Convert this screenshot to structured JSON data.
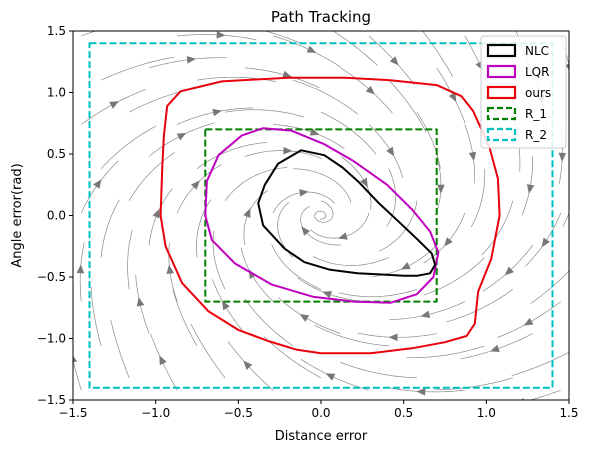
{
  "chart_data": {
    "type": "line",
    "title": "Path Tracking",
    "xlabel": "Distance error",
    "ylabel": "Angle error(rad)",
    "xlim": [
      -1.5,
      1.5
    ],
    "ylim": [
      -1.5,
      1.5
    ],
    "xticks": [
      "−1.5",
      "−1.0",
      "−0.5",
      "0.0",
      "0.5",
      "1.0",
      "1.5"
    ],
    "yticks": [
      "−1.5",
      "−1.0",
      "−0.5",
      "0.0",
      "0.5",
      "1.0",
      "1.5"
    ],
    "xtick_values": [
      -1.5,
      -1.0,
      -0.5,
      0.0,
      0.5,
      1.0,
      1.5
    ],
    "ytick_values": [
      -1.5,
      -1.0,
      -0.5,
      0.0,
      0.5,
      1.0,
      1.5
    ],
    "legend_placement": "top-right",
    "background": "streamplot vector field",
    "series": [
      {
        "name": "NLC",
        "color": "#000000",
        "style": "solid",
        "closed": true,
        "points": [
          [
            -0.12,
            0.53
          ],
          [
            0.02,
            0.49
          ],
          [
            0.13,
            0.39
          ],
          [
            0.23,
            0.27
          ],
          [
            0.35,
            0.1
          ],
          [
            0.47,
            -0.05
          ],
          [
            0.58,
            -0.19
          ],
          [
            0.67,
            -0.31
          ],
          [
            0.69,
            -0.4
          ],
          [
            0.66,
            -0.47
          ],
          [
            0.58,
            -0.49
          ],
          [
            0.5,
            -0.49
          ],
          [
            0.37,
            -0.48
          ],
          [
            0.22,
            -0.47
          ],
          [
            0.05,
            -0.44
          ],
          [
            -0.1,
            -0.38
          ],
          [
            -0.22,
            -0.27
          ],
          [
            -0.35,
            -0.08
          ],
          [
            -0.38,
            0.1
          ],
          [
            -0.34,
            0.25
          ],
          [
            -0.26,
            0.42
          ],
          [
            -0.12,
            0.53
          ]
        ]
      },
      {
        "name": "LQR",
        "color": "#bf00bf",
        "style": "solid",
        "closed": true,
        "points": [
          [
            -0.35,
            0.71
          ],
          [
            -0.18,
            0.69
          ],
          [
            0.02,
            0.58
          ],
          [
            0.2,
            0.44
          ],
          [
            0.4,
            0.25
          ],
          [
            0.55,
            0.05
          ],
          [
            0.66,
            -0.13
          ],
          [
            0.71,
            -0.3
          ],
          [
            0.68,
            -0.5
          ],
          [
            0.58,
            -0.64
          ],
          [
            0.42,
            -0.71
          ],
          [
            0.2,
            -0.7
          ],
          [
            -0.05,
            -0.66
          ],
          [
            -0.3,
            -0.56
          ],
          [
            -0.52,
            -0.39
          ],
          [
            -0.66,
            -0.2
          ],
          [
            -0.7,
            0.0
          ],
          [
            -0.69,
            0.28
          ],
          [
            -0.62,
            0.49
          ],
          [
            -0.48,
            0.65
          ],
          [
            -0.35,
            0.71
          ]
        ]
      },
      {
        "name": "ours",
        "color": "#e8000b",
        "style": "solid",
        "closed": true,
        "points": [
          [
            -0.85,
            1.01
          ],
          [
            -0.6,
            1.09
          ],
          [
            -0.2,
            1.12
          ],
          [
            0.15,
            1.12
          ],
          [
            0.42,
            1.1
          ],
          [
            0.7,
            1.06
          ],
          [
            0.85,
            0.97
          ],
          [
            0.92,
            0.85
          ],
          [
            0.97,
            0.7
          ],
          [
            1.02,
            0.55
          ],
          [
            1.07,
            0.3
          ],
          [
            1.08,
            0.0
          ],
          [
            1.03,
            -0.35
          ],
          [
            0.95,
            -0.62
          ],
          [
            0.93,
            -0.88
          ],
          [
            0.88,
            -0.98
          ],
          [
            0.75,
            -1.03
          ],
          [
            0.55,
            -1.08
          ],
          [
            0.3,
            -1.12
          ],
          [
            0.0,
            -1.12
          ],
          [
            -0.15,
            -1.09
          ],
          [
            -0.32,
            -1.02
          ],
          [
            -0.5,
            -0.93
          ],
          [
            -0.68,
            -0.78
          ],
          [
            -0.84,
            -0.55
          ],
          [
            -0.94,
            -0.25
          ],
          [
            -0.97,
            0.0
          ],
          [
            -0.96,
            0.4
          ],
          [
            -0.95,
            0.65
          ],
          [
            -0.93,
            0.89
          ],
          [
            -0.85,
            1.01
          ]
        ]
      },
      {
        "name": "R_1",
        "color": "#008000",
        "style": "dashed",
        "closed": true,
        "points": [
          [
            -0.7,
            0.7
          ],
          [
            0.7,
            0.7
          ],
          [
            0.7,
            -0.7
          ],
          [
            -0.7,
            -0.7
          ],
          [
            -0.7,
            0.7
          ]
        ]
      },
      {
        "name": "R_2",
        "color": "#00bfbf",
        "style": "dashed",
        "closed": true,
        "points": [
          [
            -1.4,
            1.4
          ],
          [
            1.4,
            1.4
          ],
          [
            1.4,
            -1.4
          ],
          [
            -1.4,
            -1.4
          ],
          [
            -1.4,
            1.4
          ]
        ]
      }
    ]
  }
}
